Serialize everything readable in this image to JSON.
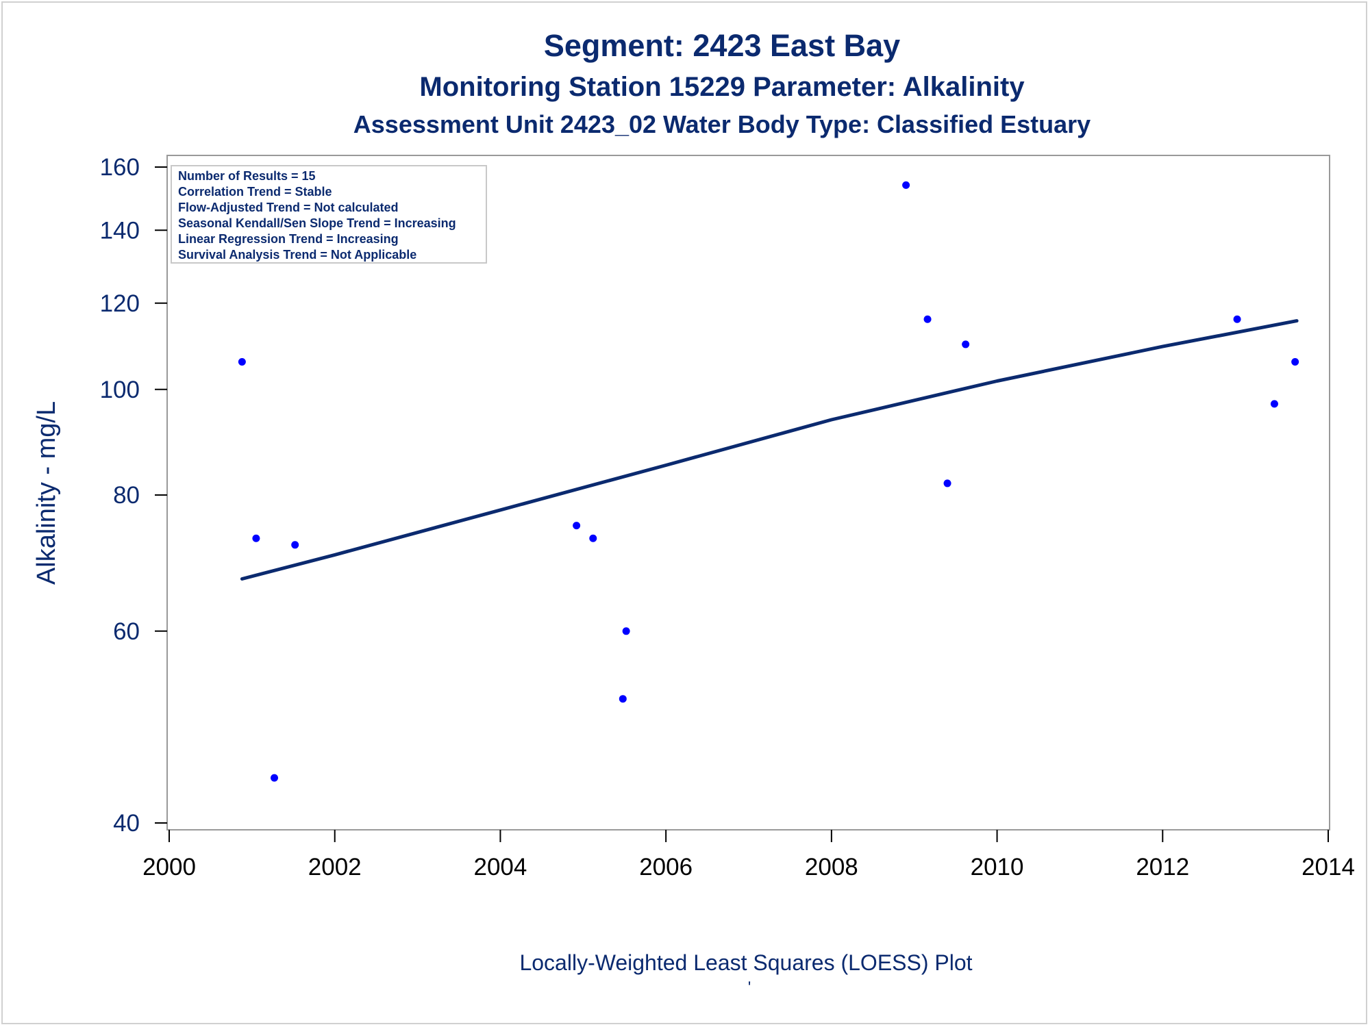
{
  "titles": {
    "line1": "Segment: 2423  East Bay",
    "line2": "Monitoring Station 15229 Parameter: Alkalinity",
    "line3": "Assessment Unit 2423_02   Water Body Type: Classified Estuary"
  },
  "footnote": "Locally-Weighted Least Squares (LOESS) Plot",
  "footnote_mark": "'",
  "stats_box": [
    "Number of Results = 15",
    "Correlation Trend = Stable",
    "Flow-Adjusted Trend = Not calculated",
    "Seasonal Kendall/Sen Slope Trend = Increasing",
    "Linear Regression Trend = Increasing",
    "Survival Analysis Trend = Not Applicable"
  ],
  "colors": {
    "text": "#0b2a6f",
    "points": "#0000ff",
    "trend_line": "#0b2a6f",
    "axis": "#999999"
  },
  "chart_data": {
    "type": "scatter",
    "title": "Segment: 2423  East Bay",
    "xlabel": "",
    "ylabel": "Alkalinity - mg/L",
    "y_scale": "log",
    "xlim": [
      2000,
      2014
    ],
    "ylim": [
      40,
      160
    ],
    "x_ticks": [
      2000,
      2002,
      2004,
      2006,
      2008,
      2010,
      2012,
      2014
    ],
    "y_ticks": [
      40,
      60,
      80,
      100,
      120,
      140,
      160
    ],
    "grid": false,
    "legend": "none",
    "points": [
      {
        "x": 2000.88,
        "y": 106
      },
      {
        "x": 2001.05,
        "y": 73
      },
      {
        "x": 2001.27,
        "y": 44
      },
      {
        "x": 2001.52,
        "y": 72
      },
      {
        "x": 2004.92,
        "y": 75
      },
      {
        "x": 2005.12,
        "y": 73
      },
      {
        "x": 2005.48,
        "y": 52
      },
      {
        "x": 2005.52,
        "y": 60
      },
      {
        "x": 2008.9,
        "y": 154
      },
      {
        "x": 2009.16,
        "y": 116
      },
      {
        "x": 2009.4,
        "y": 82
      },
      {
        "x": 2009.62,
        "y": 110
      },
      {
        "x": 2012.9,
        "y": 116
      },
      {
        "x": 2013.35,
        "y": 97
      },
      {
        "x": 2013.6,
        "y": 106
      }
    ],
    "trend_line": [
      {
        "x": 2000.88,
        "y": 67.0
      },
      {
        "x": 2002.0,
        "y": 70.5
      },
      {
        "x": 2004.0,
        "y": 77.5
      },
      {
        "x": 2006.0,
        "y": 85.2
      },
      {
        "x": 2008.0,
        "y": 93.8
      },
      {
        "x": 2010.0,
        "y": 101.8
      },
      {
        "x": 2012.0,
        "y": 109.5
      },
      {
        "x": 2013.62,
        "y": 115.6
      }
    ]
  }
}
